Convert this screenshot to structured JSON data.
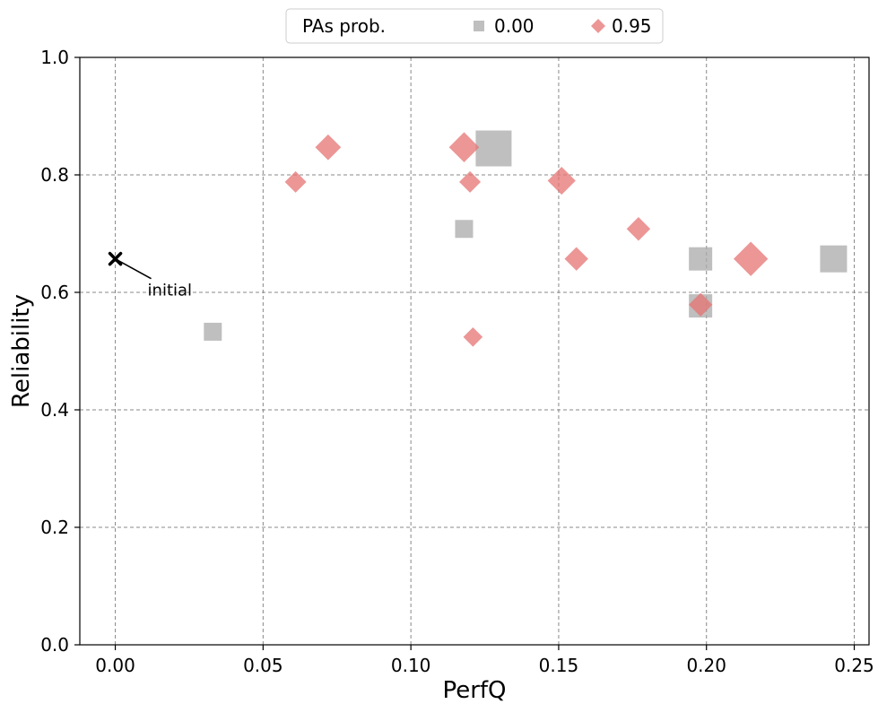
{
  "chart_data": {
    "type": "scatter",
    "title": "",
    "xlabel": "PerfQ",
    "ylabel": "Reliability",
    "xlim": [
      -0.012,
      0.255
    ],
    "ylim": [
      0.0,
      1.0
    ],
    "xticks": [
      "0.00",
      "0.05",
      "0.10",
      "0.15",
      "0.20",
      "0.25"
    ],
    "yticks": [
      "0.0",
      "0.2",
      "0.4",
      "0.6",
      "0.8",
      "1.0"
    ],
    "grid": true,
    "legend": {
      "placement": "top-center",
      "title": "PAs prob.",
      "entries": [
        "0.00",
        "0.95"
      ]
    },
    "colors": {
      "0.00": "#aaaaaa",
      "0.95": "#e57373"
    },
    "series": [
      {
        "name": "0.00",
        "marker": "square",
        "points": [
          {
            "x": 0.033,
            "y": 0.533,
            "size": 1
          },
          {
            "x": 0.118,
            "y": 0.708,
            "size": 1
          },
          {
            "x": 0.128,
            "y": 0.845,
            "size": 2
          },
          {
            "x": 0.198,
            "y": 0.657,
            "size": 1.3
          },
          {
            "x": 0.198,
            "y": 0.577,
            "size": 1.3
          },
          {
            "x": 0.243,
            "y": 0.657,
            "size": 1.5
          }
        ]
      },
      {
        "name": "0.95",
        "marker": "diamond",
        "points": [
          {
            "x": 0.061,
            "y": 0.788,
            "size": 1
          },
          {
            "x": 0.072,
            "y": 0.847,
            "size": 1.2
          },
          {
            "x": 0.118,
            "y": 0.847,
            "size": 1.4
          },
          {
            "x": 0.12,
            "y": 0.788,
            "size": 1
          },
          {
            "x": 0.121,
            "y": 0.524,
            "size": 0.9
          },
          {
            "x": 0.151,
            "y": 0.79,
            "size": 1.3
          },
          {
            "x": 0.156,
            "y": 0.657,
            "size": 1.1
          },
          {
            "x": 0.177,
            "y": 0.708,
            "size": 1.1
          },
          {
            "x": 0.198,
            "y": 0.579,
            "size": 1.1
          },
          {
            "x": 0.215,
            "y": 0.657,
            "size": 1.6
          }
        ]
      }
    ],
    "annotations": [
      {
        "text": "initial",
        "x": 0.0,
        "y": 0.657
      }
    ]
  }
}
